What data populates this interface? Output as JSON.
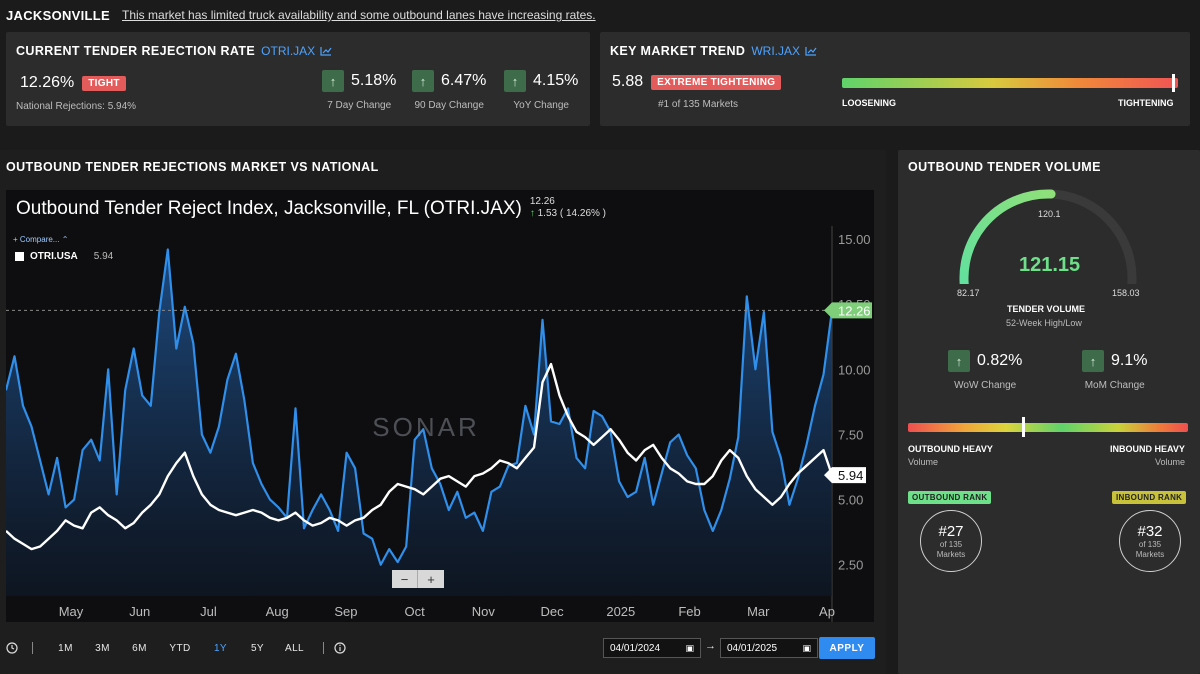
{
  "header": {
    "market": "JACKSONVILLE",
    "note": "This market has limited truck availability and some outbound lanes have increasing rates."
  },
  "rejection": {
    "title": "CURRENT TENDER REJECTION RATE",
    "ticker": "OTRI.JAX",
    "value": "12.26%",
    "badge": "TIGHT",
    "national": "National Rejections: 5.94%",
    "changes": [
      {
        "value": "5.18%",
        "label": "7 Day Change"
      },
      {
        "value": "6.47%",
        "label": "90 Day Change"
      },
      {
        "value": "4.15%",
        "label": "YoY Change"
      }
    ]
  },
  "trend": {
    "title": "KEY MARKET TREND",
    "ticker": "WRI.JAX",
    "value": "5.88",
    "badge": "EXTREME TIGHTENING",
    "rank": "#1 of 135 Markets",
    "left_label": "LOOSENING",
    "right_label": "TIGHTENING",
    "level": 0.99
  },
  "chart_section": {
    "title": "OUTBOUND TENDER REJECTIONS MARKET VS NATIONAL"
  },
  "chart_data": {
    "type": "line",
    "title": "Outbound Tender Reject Index, Jacksonville, FL (OTRI.JAX)",
    "current_value": "12.26",
    "change": "1.53 ( 14.26% )",
    "compare_label": "Compare...",
    "legend": [
      {
        "name": "OTRI.USA",
        "value": "5.94"
      }
    ],
    "watermark": "SONAR",
    "x_ticks": [
      "May",
      "Jun",
      "Jul",
      "Aug",
      "Sep",
      "Oct",
      "Nov",
      "Dec",
      "2025",
      "Feb",
      "Mar",
      "Ap"
    ],
    "y_ticks": [
      "15.00",
      "12.50",
      "10.00",
      "7.50",
      "5.00",
      "2.50"
    ],
    "y_tick_values": [
      15,
      12.5,
      10,
      7.5,
      5,
      2.5
    ],
    "ylim": [
      1.3,
      15.5
    ],
    "last_labels": {
      "jax": "12.26",
      "usa": "5.94"
    },
    "zoom_minus": "−",
    "zoom_plus": "+",
    "series": [
      {
        "name": "OTRI.JAX",
        "color": "#2f8fea",
        "values": [
          9.2,
          10.5,
          8.6,
          7.8,
          6.5,
          5.2,
          6.6,
          4.7,
          5.0,
          6.9,
          7.3,
          6.5,
          10.0,
          5.2,
          9.2,
          10.8,
          9.0,
          8.6,
          12.2,
          14.6,
          10.8,
          12.4,
          11.0,
          7.5,
          6.8,
          7.8,
          9.6,
          10.6,
          8.8,
          6.4,
          5.6,
          5.0,
          4.7,
          4.3,
          8.5,
          3.9,
          4.6,
          5.2,
          4.6,
          3.8,
          6.8,
          6.2,
          3.7,
          3.5,
          2.5,
          3.1,
          2.6,
          3.2,
          7.3,
          7.7,
          6.2,
          5.6,
          4.6,
          5.3,
          4.3,
          4.5,
          3.8,
          5.3,
          5.5,
          6.3,
          6.4,
          8.6,
          7.5,
          11.9,
          8.0,
          7.9,
          8.5,
          6.6,
          6.2,
          8.4,
          8.2,
          7.6,
          5.7,
          5.1,
          5.3,
          6.6,
          4.8,
          6.0,
          7.2,
          7.5,
          6.7,
          6.2,
          4.6,
          3.8,
          4.6,
          5.8,
          7.4,
          12.8,
          10.0,
          12.2,
          7.6,
          6.6,
          4.8,
          5.8,
          7.1,
          8.6,
          9.8,
          12.26
        ]
      },
      {
        "name": "OTRI.USA",
        "color": "#ffffff",
        "values": [
          3.8,
          3.5,
          3.3,
          3.1,
          3.2,
          3.5,
          3.8,
          4.2,
          4.0,
          3.9,
          4.5,
          4.7,
          4.4,
          4.2,
          3.9,
          4.1,
          4.5,
          4.8,
          5.2,
          5.9,
          6.4,
          6.8,
          5.9,
          5.2,
          4.8,
          4.6,
          4.5,
          4.4,
          4.5,
          4.6,
          4.5,
          4.3,
          4.2,
          4.3,
          4.5,
          4.2,
          4.0,
          4.1,
          4.3,
          4.2,
          4.0,
          4.2,
          4.3,
          4.6,
          4.8,
          5.3,
          5.6,
          5.5,
          5.4,
          5.2,
          5.5,
          5.8,
          5.9,
          5.7,
          5.5,
          5.9,
          6.0,
          6.2,
          6.5,
          6.4,
          6.2,
          6.6,
          7.0,
          9.5,
          10.2,
          9.0,
          8.2,
          7.6,
          7.4,
          7.1,
          7.4,
          7.7,
          7.3,
          6.8,
          6.5,
          6.9,
          7.1,
          6.6,
          6.2,
          6.0,
          5.7,
          5.6,
          5.6,
          5.9,
          6.5,
          6.9,
          6.6,
          5.9,
          5.4,
          5.1,
          4.8,
          5.1,
          5.6,
          6.0,
          6.3,
          6.6,
          6.9,
          5.94
        ]
      }
    ]
  },
  "controls": {
    "ranges": [
      "1M",
      "3M",
      "6M",
      "YTD",
      "1Y",
      "5Y",
      "ALL"
    ],
    "active": "1Y",
    "start_date": "04/01/2024",
    "end_date": "04/01/2025",
    "arrow": "→",
    "apply": "APPLY"
  },
  "volume": {
    "title": "OUTBOUND TENDER VOLUME",
    "gauge_marker": "120.1",
    "value": "121.15",
    "low": "82.17",
    "high": "158.03",
    "label": "TENDER VOLUME",
    "sublabel": "52-Week High/Low",
    "gauge_level": 0.51,
    "changes": [
      {
        "value": "0.82%",
        "label": "WoW Change"
      },
      {
        "value": "9.1%",
        "label": "MoM Change"
      }
    ],
    "balance_level": 0.41,
    "left_label": "OUTBOUND HEAVY",
    "left_sub": "Volume",
    "right_label": "INBOUND HEAVY",
    "right_sub": "Volume",
    "outbound_rank_label": "OUTBOUND RANK",
    "outbound_rank": "#27",
    "inbound_rank_label": "INBOUND RANK",
    "inbound_rank": "#32",
    "rank_of": "of 135",
    "rank_unit": "Markets"
  }
}
